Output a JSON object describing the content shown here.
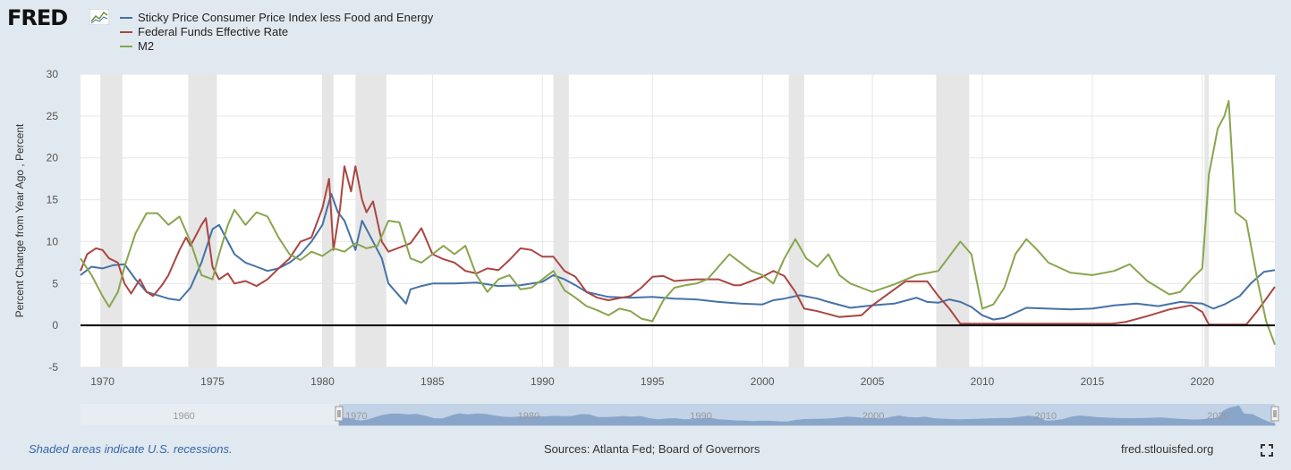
{
  "logo": {
    "text": "FRED",
    "icon": "fred-graph-icon"
  },
  "footer": {
    "recessions_note": "Shaded areas indicate U.S. recessions.",
    "sources": "Sources: Atlanta Fed; Board of Governors",
    "site": "fred.stlouisfed.org",
    "fullscreen_icon": "fullscreen-icon"
  },
  "colors": {
    "background": "#e1e9f0",
    "plot_background": "#ffffff",
    "recession": "#e6e6e6",
    "navigator_fill": "#a9bfe0",
    "navigator_line": "#4572a7"
  },
  "chart_data": {
    "type": "line",
    "ylabel": "Percent Change from Year Ago , Percent",
    "ylim": [
      -5,
      30
    ],
    "yticks": [
      -5,
      0,
      5,
      10,
      15,
      20,
      25,
      30
    ],
    "xlim": [
      1969.0,
      2023.3
    ],
    "xticks": [
      1970,
      1975,
      1980,
      1985,
      1990,
      1995,
      2000,
      2005,
      2010,
      2015,
      2020
    ],
    "grid": true,
    "legend_position": "top-left",
    "zero_line": true,
    "recessions": [
      [
        1969.9,
        1970.9
      ],
      [
        1973.9,
        1975.2
      ],
      [
        1980.0,
        1980.5
      ],
      [
        1981.5,
        1982.9
      ],
      [
        1990.5,
        1991.2
      ],
      [
        2001.2,
        2001.9
      ],
      [
        2007.9,
        2009.4
      ],
      [
        2020.1,
        2020.3
      ]
    ],
    "navigator": {
      "labels": [
        "1960",
        "1970",
        "1980",
        "1990",
        "2000",
        "2010",
        "2020"
      ],
      "label_years": [
        1960,
        1970,
        1980,
        1990,
        2000,
        2010,
        2020
      ],
      "range": [
        1954,
        2023.3
      ],
      "selected": [
        1969.0,
        2023.3
      ]
    },
    "series": [
      {
        "name": "Sticky Price Consumer Price Index less Food and Energy",
        "color": "#4572a7",
        "points": [
          [
            1969.0,
            6.0
          ],
          [
            1969.5,
            7.0
          ],
          [
            1970.0,
            6.8
          ],
          [
            1970.5,
            7.2
          ],
          [
            1971.0,
            7.3
          ],
          [
            1971.5,
            5.5
          ],
          [
            1972.0,
            4.0
          ],
          [
            1972.5,
            3.6
          ],
          [
            1973.0,
            3.2
          ],
          [
            1973.5,
            3.0
          ],
          [
            1974.0,
            4.5
          ],
          [
            1974.5,
            7.5
          ],
          [
            1975.0,
            11.5
          ],
          [
            1975.3,
            12.0
          ],
          [
            1975.7,
            10.0
          ],
          [
            1976.0,
            8.5
          ],
          [
            1976.5,
            7.5
          ],
          [
            1977.0,
            7.0
          ],
          [
            1977.5,
            6.5
          ],
          [
            1978.0,
            6.8
          ],
          [
            1978.5,
            7.5
          ],
          [
            1979.0,
            8.5
          ],
          [
            1979.5,
            10.0
          ],
          [
            1980.0,
            12.0
          ],
          [
            1980.4,
            15.7
          ],
          [
            1980.7,
            13.5
          ],
          [
            1981.0,
            12.5
          ],
          [
            1981.5,
            9.0
          ],
          [
            1981.8,
            12.5
          ],
          [
            1982.2,
            10.5
          ],
          [
            1982.7,
            8.0
          ],
          [
            1983.0,
            5.0
          ],
          [
            1983.5,
            3.5
          ],
          [
            1983.8,
            2.6
          ],
          [
            1984.0,
            4.3
          ],
          [
            1984.5,
            4.7
          ],
          [
            1985.0,
            5.0
          ],
          [
            1986.0,
            5.0
          ],
          [
            1987.0,
            5.1
          ],
          [
            1988.0,
            4.7
          ],
          [
            1989.0,
            4.8
          ],
          [
            1990.0,
            5.2
          ],
          [
            1990.5,
            6.0
          ],
          [
            1991.0,
            5.5
          ],
          [
            1991.5,
            4.8
          ],
          [
            1992.0,
            4.0
          ],
          [
            1993.0,
            3.4
          ],
          [
            1994.0,
            3.3
          ],
          [
            1995.0,
            3.4
          ],
          [
            1996.0,
            3.2
          ],
          [
            1997.0,
            3.1
          ],
          [
            1998.0,
            2.8
          ],
          [
            1999.0,
            2.6
          ],
          [
            2000.0,
            2.5
          ],
          [
            2000.5,
            3.0
          ],
          [
            2001.0,
            3.2
          ],
          [
            2001.7,
            3.6
          ],
          [
            2002.5,
            3.2
          ],
          [
            2003.0,
            2.8
          ],
          [
            2004.0,
            2.1
          ],
          [
            2005.0,
            2.4
          ],
          [
            2006.0,
            2.6
          ],
          [
            2007.0,
            3.3
          ],
          [
            2007.5,
            2.8
          ],
          [
            2008.0,
            2.7
          ],
          [
            2008.5,
            3.1
          ],
          [
            2009.0,
            2.8
          ],
          [
            2009.5,
            2.2
          ],
          [
            2010.0,
            1.2
          ],
          [
            2010.5,
            0.7
          ],
          [
            2011.0,
            0.9
          ],
          [
            2012.0,
            2.1
          ],
          [
            2013.0,
            2.0
          ],
          [
            2014.0,
            1.9
          ],
          [
            2015.0,
            2.0
          ],
          [
            2016.0,
            2.4
          ],
          [
            2017.0,
            2.6
          ],
          [
            2018.0,
            2.3
          ],
          [
            2019.0,
            2.8
          ],
          [
            2020.0,
            2.6
          ],
          [
            2020.5,
            2.0
          ],
          [
            2021.0,
            2.5
          ],
          [
            2021.7,
            3.5
          ],
          [
            2022.2,
            5.0
          ],
          [
            2022.8,
            6.4
          ],
          [
            2023.3,
            6.6
          ]
        ]
      },
      {
        "name": "Federal Funds Effective Rate",
        "color": "#aa4643",
        "points": [
          [
            1969.0,
            6.5
          ],
          [
            1969.3,
            8.5
          ],
          [
            1969.7,
            9.2
          ],
          [
            1970.0,
            9.0
          ],
          [
            1970.3,
            8.0
          ],
          [
            1970.7,
            7.5
          ],
          [
            1971.0,
            5.0
          ],
          [
            1971.3,
            3.8
          ],
          [
            1971.7,
            5.5
          ],
          [
            1972.0,
            4.0
          ],
          [
            1972.3,
            3.5
          ],
          [
            1972.7,
            4.8
          ],
          [
            1973.0,
            6.0
          ],
          [
            1973.5,
            9.0
          ],
          [
            1973.8,
            10.5
          ],
          [
            1974.0,
            9.5
          ],
          [
            1974.5,
            12.0
          ],
          [
            1974.7,
            12.8
          ],
          [
            1975.0,
            7.0
          ],
          [
            1975.3,
            5.5
          ],
          [
            1975.7,
            6.2
          ],
          [
            1976.0,
            5.0
          ],
          [
            1976.5,
            5.3
          ],
          [
            1977.0,
            4.7
          ],
          [
            1977.5,
            5.5
          ],
          [
            1978.0,
            6.8
          ],
          [
            1978.5,
            8.0
          ],
          [
            1979.0,
            10.0
          ],
          [
            1979.5,
            10.5
          ],
          [
            1980.0,
            14.0
          ],
          [
            1980.3,
            17.5
          ],
          [
            1980.5,
            9.0
          ],
          [
            1980.8,
            14.0
          ],
          [
            1981.0,
            19.0
          ],
          [
            1981.3,
            16.0
          ],
          [
            1981.5,
            19.0
          ],
          [
            1981.8,
            15.0
          ],
          [
            1982.0,
            13.5
          ],
          [
            1982.3,
            14.8
          ],
          [
            1982.7,
            10.0
          ],
          [
            1983.0,
            8.8
          ],
          [
            1983.5,
            9.3
          ],
          [
            1984.0,
            9.8
          ],
          [
            1984.5,
            11.6
          ],
          [
            1985.0,
            8.5
          ],
          [
            1985.5,
            7.9
          ],
          [
            1986.0,
            7.5
          ],
          [
            1986.5,
            6.5
          ],
          [
            1987.0,
            6.2
          ],
          [
            1987.5,
            6.8
          ],
          [
            1988.0,
            6.6
          ],
          [
            1988.5,
            7.8
          ],
          [
            1989.0,
            9.2
          ],
          [
            1989.5,
            9.0
          ],
          [
            1990.0,
            8.2
          ],
          [
            1990.5,
            8.2
          ],
          [
            1991.0,
            6.5
          ],
          [
            1991.5,
            5.8
          ],
          [
            1992.0,
            4.0
          ],
          [
            1992.5,
            3.3
          ],
          [
            1993.0,
            3.0
          ],
          [
            1994.0,
            3.5
          ],
          [
            1994.5,
            4.5
          ],
          [
            1995.0,
            5.8
          ],
          [
            1995.5,
            5.9
          ],
          [
            1996.0,
            5.3
          ],
          [
            1997.0,
            5.5
          ],
          [
            1998.0,
            5.5
          ],
          [
            1998.7,
            4.8
          ],
          [
            1999.0,
            4.8
          ],
          [
            2000.0,
            5.8
          ],
          [
            2000.5,
            6.5
          ],
          [
            2001.0,
            5.9
          ],
          [
            2001.5,
            4.0
          ],
          [
            2001.9,
            2.0
          ],
          [
            2002.5,
            1.7
          ],
          [
            2003.5,
            1.0
          ],
          [
            2004.5,
            1.2
          ],
          [
            2005.0,
            2.4
          ],
          [
            2006.0,
            4.3
          ],
          [
            2006.5,
            5.25
          ],
          [
            2007.5,
            5.25
          ],
          [
            2008.0,
            3.5
          ],
          [
            2008.5,
            2.0
          ],
          [
            2009.0,
            0.2
          ],
          [
            2015.9,
            0.2
          ],
          [
            2016.5,
            0.4
          ],
          [
            2017.5,
            1.1
          ],
          [
            2018.5,
            1.9
          ],
          [
            2019.5,
            2.4
          ],
          [
            2020.0,
            1.6
          ],
          [
            2020.3,
            0.1
          ],
          [
            2022.0,
            0.1
          ],
          [
            2022.5,
            1.7
          ],
          [
            2023.3,
            4.6
          ]
        ]
      },
      {
        "name": "M2",
        "color": "#89a54e",
        "points": [
          [
            1969.0,
            8.0
          ],
          [
            1969.5,
            6.0
          ],
          [
            1970.0,
            3.5
          ],
          [
            1970.3,
            2.2
          ],
          [
            1970.7,
            4.0
          ],
          [
            1971.0,
            7.0
          ],
          [
            1971.5,
            11.0
          ],
          [
            1972.0,
            13.4
          ],
          [
            1972.5,
            13.4
          ],
          [
            1973.0,
            12.0
          ],
          [
            1973.5,
            13.0
          ],
          [
            1974.0,
            10.0
          ],
          [
            1974.5,
            6.0
          ],
          [
            1975.0,
            5.5
          ],
          [
            1975.3,
            8.5
          ],
          [
            1975.7,
            12.0
          ],
          [
            1976.0,
            13.8
          ],
          [
            1976.5,
            12.0
          ],
          [
            1977.0,
            13.5
          ],
          [
            1977.5,
            13.0
          ],
          [
            1978.0,
            10.5
          ],
          [
            1978.5,
            8.5
          ],
          [
            1979.0,
            7.8
          ],
          [
            1979.5,
            8.8
          ],
          [
            1980.0,
            8.3
          ],
          [
            1980.5,
            9.2
          ],
          [
            1981.0,
            8.8
          ],
          [
            1981.5,
            9.8
          ],
          [
            1982.0,
            9.2
          ],
          [
            1982.5,
            9.5
          ],
          [
            1983.0,
            12.5
          ],
          [
            1983.5,
            12.3
          ],
          [
            1984.0,
            8.0
          ],
          [
            1984.5,
            7.5
          ],
          [
            1985.0,
            8.5
          ],
          [
            1985.5,
            9.5
          ],
          [
            1986.0,
            8.5
          ],
          [
            1986.5,
            9.5
          ],
          [
            1987.0,
            6.0
          ],
          [
            1987.5,
            4.0
          ],
          [
            1988.0,
            5.5
          ],
          [
            1988.5,
            6.0
          ],
          [
            1989.0,
            4.3
          ],
          [
            1989.5,
            4.5
          ],
          [
            1990.0,
            5.5
          ],
          [
            1990.5,
            6.5
          ],
          [
            1991.0,
            4.2
          ],
          [
            1991.5,
            3.3
          ],
          [
            1992.0,
            2.3
          ],
          [
            1992.5,
            1.8
          ],
          [
            1993.0,
            1.2
          ],
          [
            1993.5,
            2.0
          ],
          [
            1994.0,
            1.7
          ],
          [
            1994.5,
            0.8
          ],
          [
            1995.0,
            0.5
          ],
          [
            1995.5,
            3.0
          ],
          [
            1996.0,
            4.5
          ],
          [
            1996.5,
            4.8
          ],
          [
            1997.0,
            5.0
          ],
          [
            1997.5,
            5.5
          ],
          [
            1998.0,
            7.0
          ],
          [
            1998.5,
            8.5
          ],
          [
            1999.0,
            7.5
          ],
          [
            1999.5,
            6.5
          ],
          [
            2000.0,
            6.0
          ],
          [
            2000.5,
            5.0
          ],
          [
            2001.0,
            8.0
          ],
          [
            2001.5,
            10.3
          ],
          [
            2002.0,
            8.0
          ],
          [
            2002.5,
            7.0
          ],
          [
            2003.0,
            8.5
          ],
          [
            2003.5,
            6.0
          ],
          [
            2004.0,
            5.0
          ],
          [
            2004.5,
            4.5
          ],
          [
            2005.0,
            4.0
          ],
          [
            2006.0,
            4.9
          ],
          [
            2007.0,
            6.0
          ],
          [
            2008.0,
            6.5
          ],
          [
            2009.0,
            10.0
          ],
          [
            2009.5,
            8.5
          ],
          [
            2010.0,
            2.0
          ],
          [
            2010.5,
            2.5
          ],
          [
            2011.0,
            4.5
          ],
          [
            2011.5,
            8.5
          ],
          [
            2012.0,
            10.3
          ],
          [
            2012.5,
            9.0
          ],
          [
            2013.0,
            7.5
          ],
          [
            2014.0,
            6.3
          ],
          [
            2015.0,
            6.0
          ],
          [
            2016.0,
            6.5
          ],
          [
            2016.7,
            7.3
          ],
          [
            2017.5,
            5.3
          ],
          [
            2018.5,
            3.7
          ],
          [
            2019.0,
            4.0
          ],
          [
            2019.5,
            5.5
          ],
          [
            2020.0,
            6.8
          ],
          [
            2020.3,
            18.0
          ],
          [
            2020.7,
            23.5
          ],
          [
            2021.0,
            25.0
          ],
          [
            2021.2,
            26.8
          ],
          [
            2021.5,
            13.5
          ],
          [
            2022.0,
            12.5
          ],
          [
            2022.5,
            5.5
          ],
          [
            2022.9,
            0.5
          ],
          [
            2023.3,
            -2.3
          ]
        ]
      }
    ]
  }
}
